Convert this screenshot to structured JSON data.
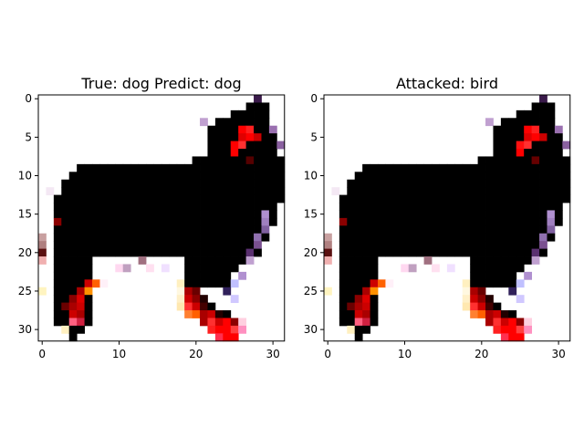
{
  "chart_data": [
    {
      "type": "heatmap",
      "title": "True: dog  Predict: dog",
      "xlabel": "",
      "ylabel": "",
      "xlim": [
        0,
        32
      ],
      "ylim": [
        32,
        0
      ],
      "x_ticks": [
        "0",
        "10",
        "20",
        "30"
      ],
      "y_ticks": [
        "0",
        "5",
        "10",
        "15",
        "20",
        "25",
        "30"
      ],
      "grid": false
    },
    {
      "type": "heatmap",
      "title": "Attacked: bird",
      "xlabel": "",
      "ylabel": "",
      "xlim": [
        0,
        32
      ],
      "ylim": [
        32,
        0
      ],
      "x_ticks": [
        "0",
        "10",
        "20",
        "30"
      ],
      "y_ticks": [
        "0",
        "5",
        "10",
        "15",
        "20",
        "25",
        "30"
      ],
      "grid": false
    }
  ]
}
